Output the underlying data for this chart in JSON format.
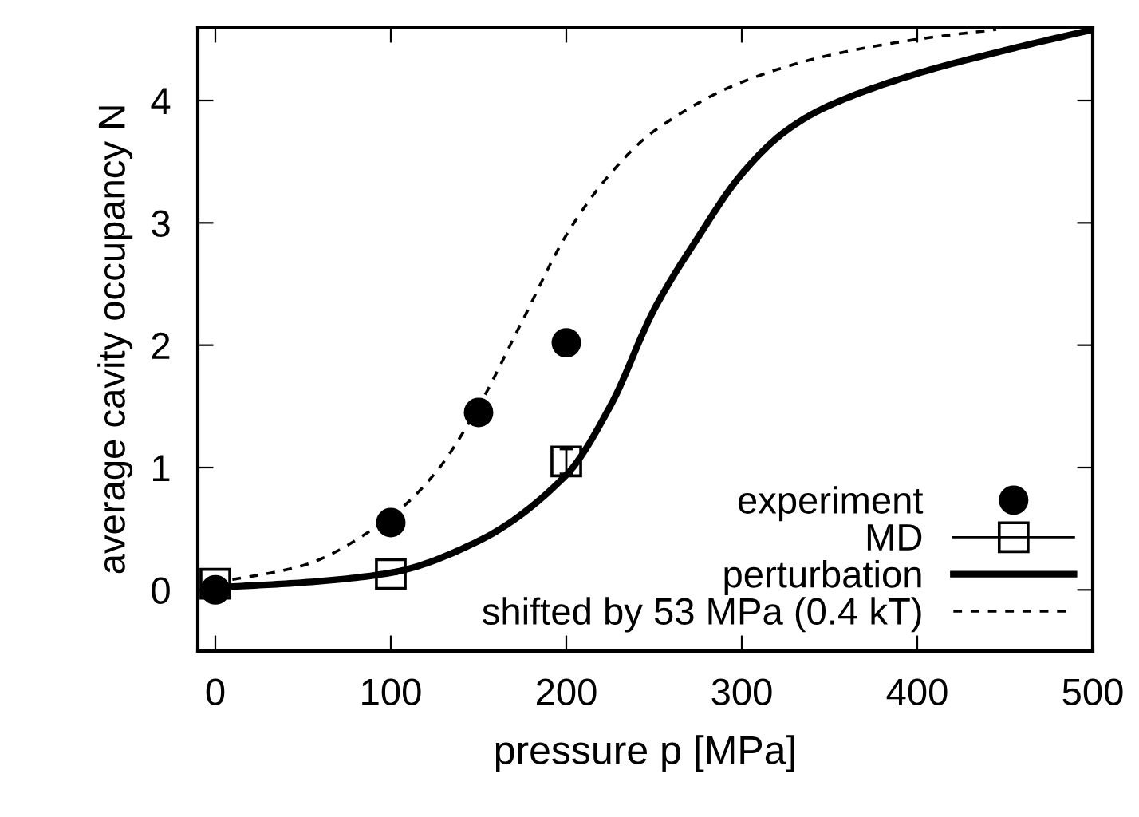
{
  "chart_data": {
    "type": "line",
    "xlabel": "pressure p [MPa]",
    "ylabel": "average cavity occupancy N",
    "xlim": [
      -10,
      500
    ],
    "ylim": [
      -0.5,
      4.6
    ],
    "xticks": [
      0,
      100,
      200,
      300,
      400,
      500
    ],
    "yticks": [
      0,
      1,
      2,
      3,
      4
    ],
    "grid": false,
    "legend": "bottom right",
    "series": [
      {
        "name": "experiment",
        "type": "scatter",
        "marker": "circle",
        "color": "#000000",
        "x": [
          0,
          100,
          150,
          200
        ],
        "values": [
          0,
          0.55,
          1.45,
          2.02
        ]
      },
      {
        "name": "MD",
        "type": "scatter",
        "marker": "square",
        "color": "#000000",
        "x": [
          0,
          100,
          200
        ],
        "values": [
          0.05,
          0.13,
          1.05
        ],
        "errors": [
          null,
          null,
          0.1
        ]
      },
      {
        "name": "perturbation",
        "line_style": "solid",
        "color": "#000000",
        "x": [
          0,
          50,
          100,
          150,
          200,
          225,
          250,
          275,
          300,
          325,
          350,
          400,
          450,
          500
        ],
        "values": [
          0.02,
          0.06,
          0.14,
          0.4,
          0.94,
          1.5,
          2.29,
          2.88,
          3.4,
          3.75,
          3.96,
          4.22,
          4.41,
          4.58
        ]
      },
      {
        "name": "shifted by 53 MPa (0.4 kT)",
        "line_style": "dashed",
        "color": "#000000",
        "x": [
          0,
          50,
          100,
          125,
          150,
          175,
          200,
          225,
          250,
          300,
          350,
          400,
          445
        ],
        "values": [
          0.06,
          0.2,
          0.6,
          0.95,
          1.5,
          2.2,
          2.9,
          3.4,
          3.75,
          4.15,
          4.37,
          4.5,
          4.58
        ]
      }
    ]
  }
}
